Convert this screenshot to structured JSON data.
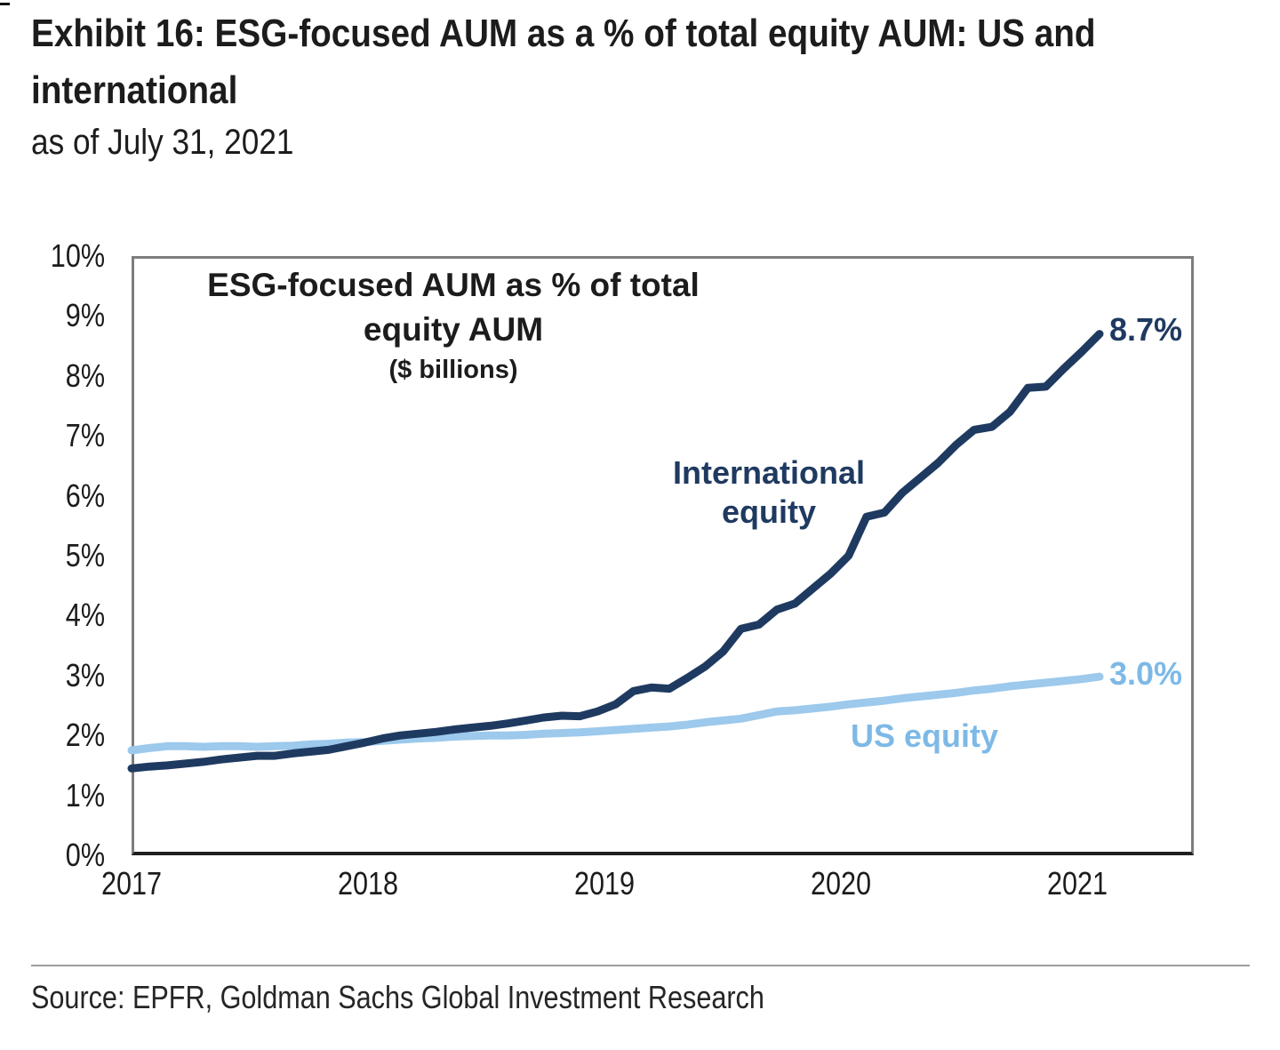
{
  "page": {
    "title_line1": "Exhibit 16: ESG-focused AUM as a % of total equity AUM: US and",
    "title_line2": "international",
    "subtitle": "as of July 31, 2021",
    "source": "Source: EPFR, Goldman Sachs Global Investment Research"
  },
  "chart_data": {
    "type": "line",
    "title_lines": [
      "ESG-focused AUM as % of total",
      "equity AUM"
    ],
    "unit_note": "($ billions)",
    "x_tick_labels": [
      "2017",
      "2018",
      "2019",
      "2020",
      "2021"
    ],
    "y_tick_labels": [
      "0%",
      "1%",
      "2%",
      "3%",
      "4%",
      "5%",
      "6%",
      "7%",
      "8%",
      "9%",
      "10%"
    ],
    "ylim": [
      0,
      10
    ],
    "grid": false,
    "legend_position": "inline-annotations",
    "x_start": "2017-01",
    "x_end": "2021-07",
    "x_interval": "monthly",
    "colors": {
      "international_line": "#1f3a60",
      "international_text": "#1f3a60",
      "us_line": "#9cc9ec",
      "us_text": "#7db9e6"
    },
    "series": [
      {
        "name": "International equity",
        "end_label": "8.7%",
        "values": [
          1.45,
          1.48,
          1.5,
          1.53,
          1.56,
          1.6,
          1.63,
          1.66,
          1.66,
          1.7,
          1.73,
          1.76,
          1.82,
          1.88,
          1.95,
          2.0,
          2.03,
          2.06,
          2.1,
          2.13,
          2.16,
          2.2,
          2.25,
          2.3,
          2.33,
          2.32,
          2.4,
          2.52,
          2.74,
          2.8,
          2.78,
          2.96,
          3.15,
          3.4,
          3.78,
          3.85,
          4.1,
          4.2,
          4.45,
          4.7,
          5.0,
          5.65,
          5.72,
          6.05,
          6.3,
          6.55,
          6.85,
          7.1,
          7.15,
          7.4,
          7.8,
          7.82,
          8.12,
          8.4,
          8.7
        ]
      },
      {
        "name": "US equity",
        "end_label": "3.0%",
        "values": [
          1.75,
          1.79,
          1.82,
          1.82,
          1.81,
          1.82,
          1.82,
          1.81,
          1.82,
          1.83,
          1.85,
          1.86,
          1.88,
          1.89,
          1.91,
          1.93,
          1.95,
          1.96,
          1.98,
          1.99,
          2.0,
          2.0,
          2.01,
          2.03,
          2.04,
          2.05,
          2.07,
          2.09,
          2.11,
          2.13,
          2.15,
          2.18,
          2.22,
          2.25,
          2.28,
          2.34,
          2.4,
          2.42,
          2.45,
          2.48,
          2.52,
          2.55,
          2.58,
          2.62,
          2.65,
          2.68,
          2.71,
          2.75,
          2.78,
          2.82,
          2.85,
          2.88,
          2.91,
          2.94,
          2.98
        ]
      }
    ]
  }
}
